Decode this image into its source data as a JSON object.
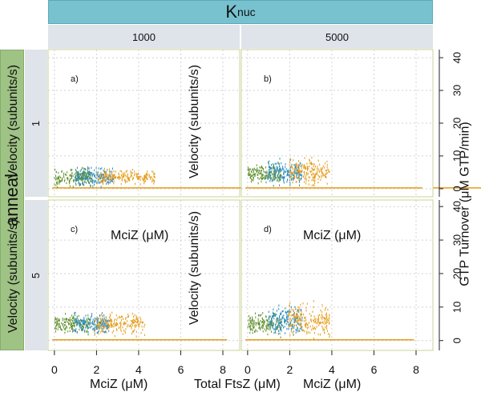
{
  "facets": {
    "top_title": "K",
    "top_title_sub": "nuc",
    "columns": [
      "1000",
      "5000"
    ],
    "left_title": "anneal",
    "rows": [
      "1",
      "5"
    ],
    "panel_letters": [
      "a)",
      "b)",
      "c)",
      "d)"
    ]
  },
  "overlay_labels": {
    "velocity": "Velocity (subunits/s)",
    "mciz": "MciZ (μM)",
    "total_ftsz": "Total FtsZ (μM)",
    "gtp_turnover": "GTP Turnover (μM GTP/min)"
  },
  "chart_data": {
    "type": "scatter",
    "x_ticks": [
      "0",
      "2",
      "4",
      "6",
      "8"
    ],
    "y_ticks_right": [
      "0",
      "10",
      "20",
      "30",
      "40"
    ],
    "xlim": [
      -0.3,
      8.8
    ],
    "ylim_right": [
      -1.5,
      41
    ],
    "grid": true,
    "colors": {
      "green": "#5e8f2c",
      "blue": "#2a8bbf",
      "orange": "#e59c1a"
    },
    "panels": [
      {
        "letter": "a)",
        "baseline_end": 38,
        "clusters": [
          {
            "color": "green",
            "x": [
              0,
              1.8
            ],
            "y_center": 3.5,
            "y_spread": 3.5,
            "n": 180
          },
          {
            "color": "blue",
            "x": [
              1.0,
              2.8
            ],
            "y_center": 3.5,
            "y_spread": 3.5,
            "n": 180
          },
          {
            "color": "orange",
            "x": [
              2.0,
              4.8
            ],
            "y_center": 3.5,
            "y_spread": 3.0,
            "n": 200
          }
        ]
      },
      {
        "letter": "b)",
        "baseline_end": 8.3,
        "clusters": [
          {
            "color": "green",
            "x": [
              0,
              1.6
            ],
            "y_center": 4.5,
            "y_spread": 3.8,
            "n": 170
          },
          {
            "color": "blue",
            "x": [
              0.9,
              2.6
            ],
            "y_center": 5.0,
            "y_spread": 4.8,
            "n": 190
          },
          {
            "color": "orange",
            "x": [
              2.0,
              3.9
            ],
            "y_center": 5.0,
            "y_spread": 5.5,
            "n": 200
          }
        ]
      },
      {
        "letter": "c)",
        "baseline_end": 8.2,
        "clusters": [
          {
            "color": "green",
            "x": [
              0,
              1.7
            ],
            "y_center": 5.0,
            "y_spread": 3.5,
            "n": 170
          },
          {
            "color": "blue",
            "x": [
              0.9,
              2.6
            ],
            "y_center": 5.0,
            "y_spread": 4.0,
            "n": 180
          },
          {
            "color": "orange",
            "x": [
              1.9,
              4.3
            ],
            "y_center": 5.0,
            "y_spread": 4.5,
            "n": 200
          }
        ]
      },
      {
        "letter": "d)",
        "baseline_end": 7.9,
        "clusters": [
          {
            "color": "green",
            "x": [
              0,
              1.6
            ],
            "y_center": 5.0,
            "y_spread": 4.5,
            "n": 170
          },
          {
            "color": "blue",
            "x": [
              1.0,
              2.6
            ],
            "y_center": 6.0,
            "y_spread": 5.5,
            "n": 190
          },
          {
            "color": "orange",
            "x": [
              1.9,
              3.9
            ],
            "y_center": 6.0,
            "y_spread": 6.5,
            "n": 210
          }
        ]
      }
    ]
  }
}
